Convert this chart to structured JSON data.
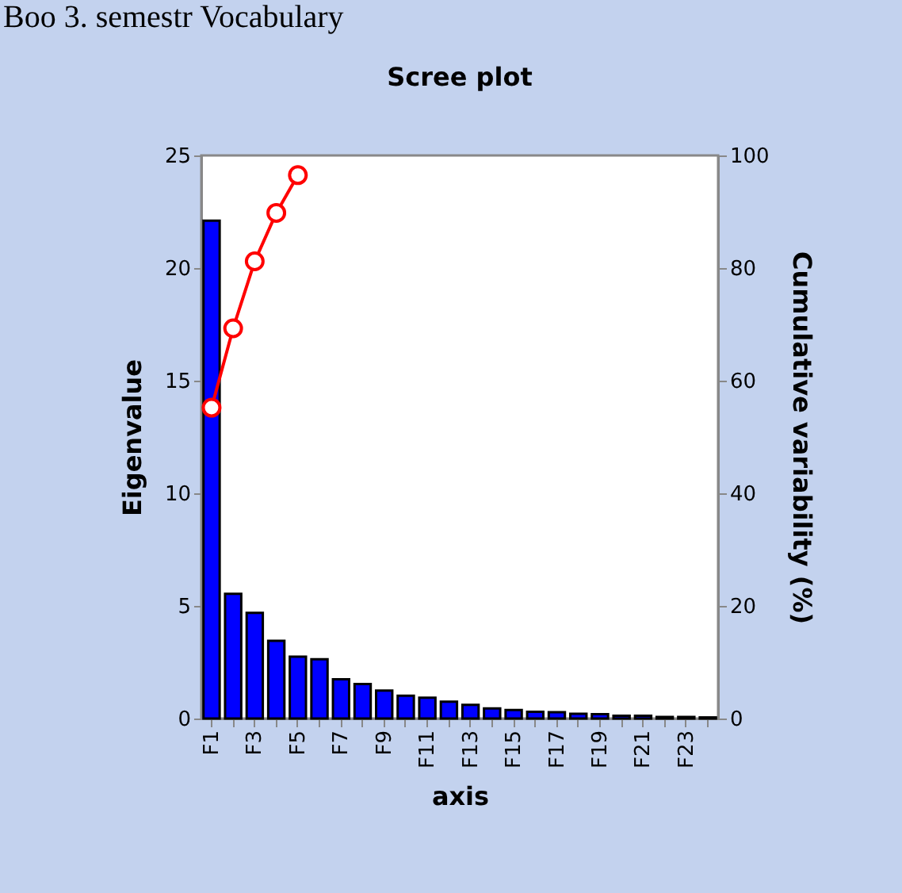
{
  "chart_data": {
    "type": "bar",
    "title": "Scree plot",
    "xlabel": "axis",
    "ylabel": "Eigenvalue",
    "y2label": "Cumulative variability (%)",
    "annotations": [
      "Boo 3. semestr Vocabulary"
    ],
    "categories": [
      "F1",
      null,
      "F3",
      null,
      "F5",
      null,
      "F7",
      null,
      "F9",
      null,
      "F11",
      null,
      "F13",
      null,
      "F15",
      null,
      "F17",
      null,
      "F19",
      null,
      "F21",
      null,
      "F23",
      null
    ],
    "series": [
      {
        "color": "#0000ff",
        "values": [
          22.1,
          5.54,
          4.69,
          3.45,
          2.75,
          2.63,
          1.74,
          1.53,
          1.24,
          1.01,
          0.92,
          0.75,
          0.61,
          0.45,
          0.38,
          0.3,
          0.28,
          0.21,
          0.19,
          0.12,
          0.12,
          0.07,
          0.07,
          0.05
        ]
      },
      {
        "type": "line",
        "axis": "y2",
        "color": "#ff0000",
        "marker": "circle",
        "values": [
          55.2,
          69.3,
          81.2,
          89.8,
          96.5,
          null,
          null,
          null,
          null,
          null,
          null,
          null,
          null,
          null,
          null,
          null,
          null,
          null,
          null,
          null,
          null,
          null,
          null,
          null
        ]
      }
    ],
    "ylim": [
      0,
      25
    ],
    "yticks": [
      0,
      5,
      10,
      15,
      20,
      25
    ],
    "y2lim": [
      0,
      100
    ],
    "y2ticks": [
      0,
      20,
      40,
      60,
      80,
      100
    ],
    "grid": false
  }
}
